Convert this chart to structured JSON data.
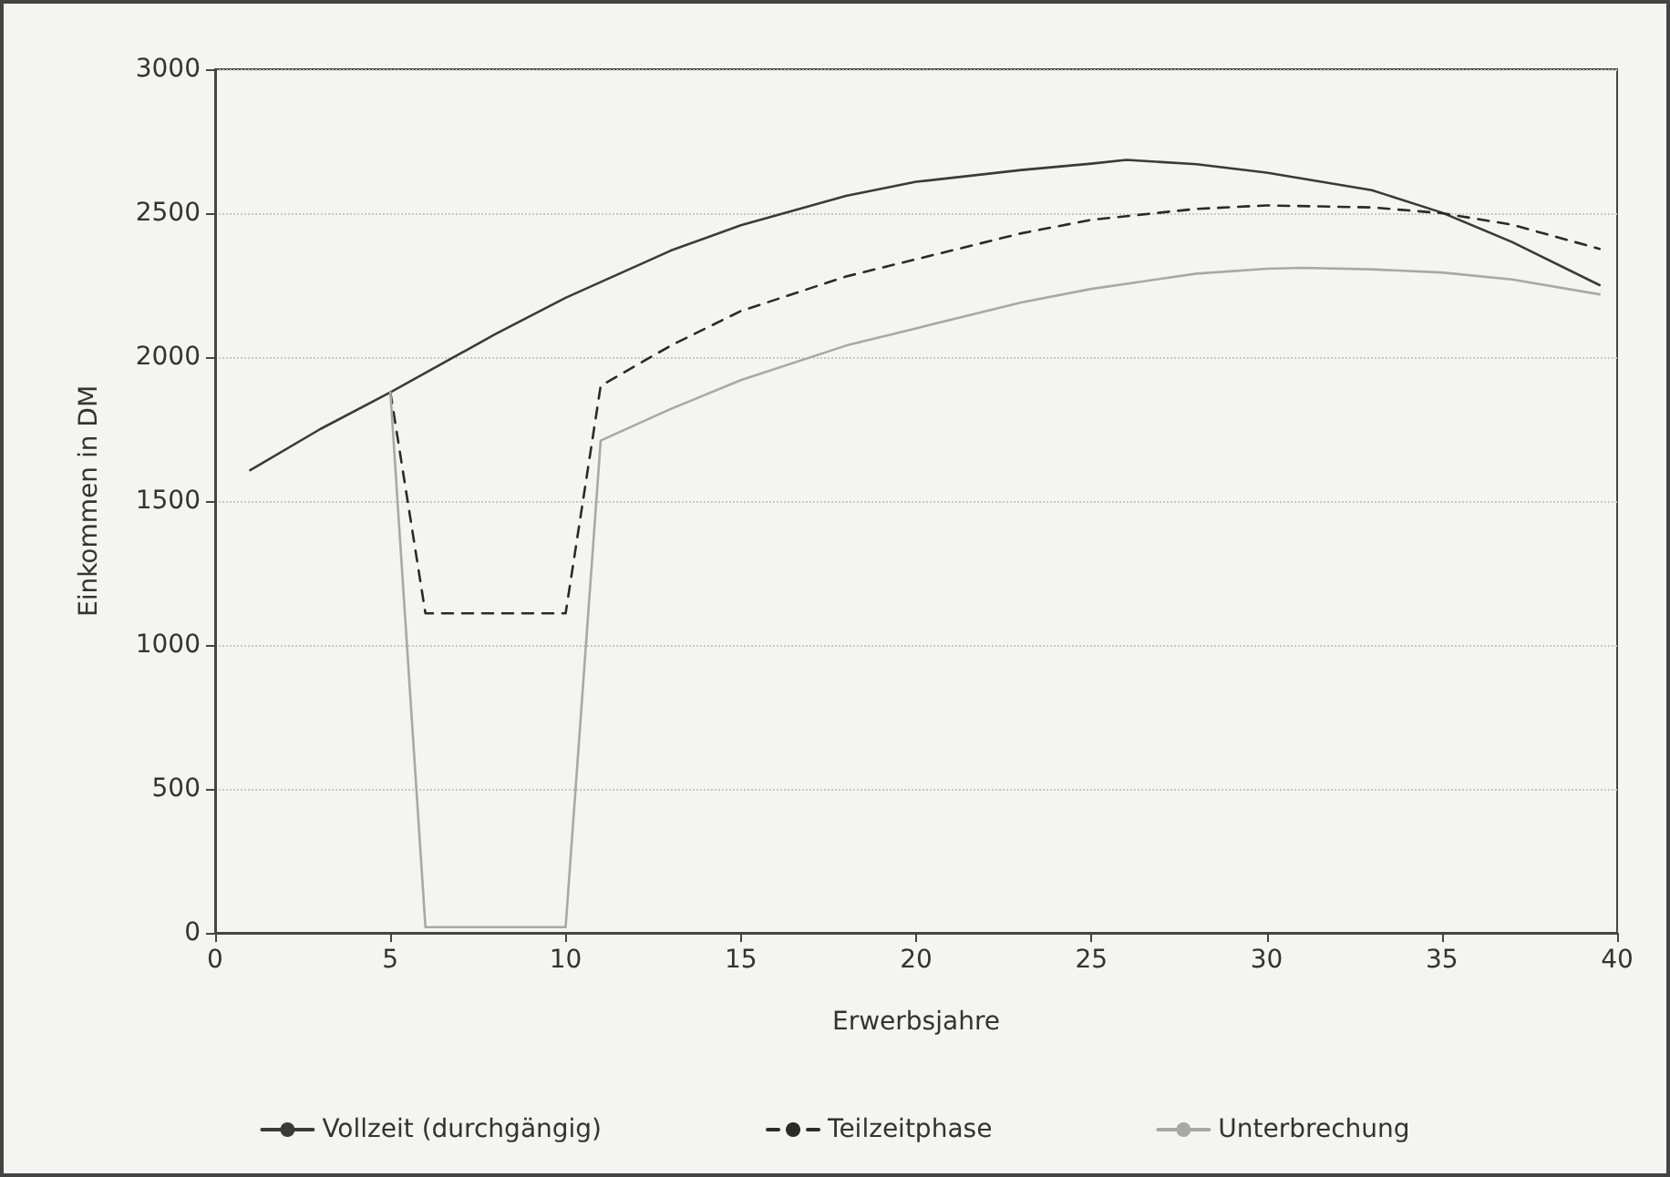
{
  "chart_data": {
    "type": "line",
    "xlabel": "Erwerbsjahre",
    "ylabel": "Einkommen in DM",
    "xlim": [
      0,
      40
    ],
    "xticks": [
      0,
      5,
      10,
      15,
      20,
      25,
      30,
      35,
      40
    ],
    "ylim": [
      0,
      3000
    ],
    "yticks": [
      0,
      500,
      1000,
      1500,
      2000,
      2500,
      3000
    ],
    "grid": "y",
    "legend": "bottom",
    "marker": "none",
    "series": [
      {
        "name": "Vollzeit (durchgängig)",
        "color": "#3a3a3a",
        "line_style": "solid",
        "x": [
          1,
          3,
          5,
          8,
          10,
          13,
          15,
          18,
          20,
          23,
          25,
          26,
          28,
          30,
          33,
          35,
          37,
          39.5
        ],
        "values": [
          1607,
          1750,
          1878,
          2080,
          2206,
          2370,
          2458,
          2560,
          2609,
          2650,
          2672,
          2685,
          2670,
          2641,
          2580,
          2502,
          2400,
          2250
        ]
      },
      {
        "name": "Teilzeitphase",
        "color": "#2a2a2a",
        "line_style": "dashed",
        "x": [
          5,
          6,
          10,
          11,
          13,
          15,
          18,
          20,
          23,
          25,
          28,
          30,
          33,
          35,
          37,
          39.5
        ],
        "values": [
          1878,
          1110,
          1110,
          1900,
          2040,
          2160,
          2280,
          2340,
          2430,
          2477,
          2515,
          2527,
          2520,
          2500,
          2460,
          2376
        ]
      },
      {
        "name": "Unterbrechung",
        "color": "#a8a8a8",
        "line_style": "solid",
        "x": [
          5,
          6,
          10,
          11,
          13,
          15,
          18,
          20,
          23,
          25,
          28,
          30,
          31,
          33,
          35,
          37,
          39.5
        ],
        "values": [
          1878,
          20,
          20,
          1710,
          1820,
          1920,
          2040,
          2100,
          2190,
          2237,
          2290,
          2307,
          2310,
          2305,
          2294,
          2270,
          2218
        ]
      }
    ]
  }
}
